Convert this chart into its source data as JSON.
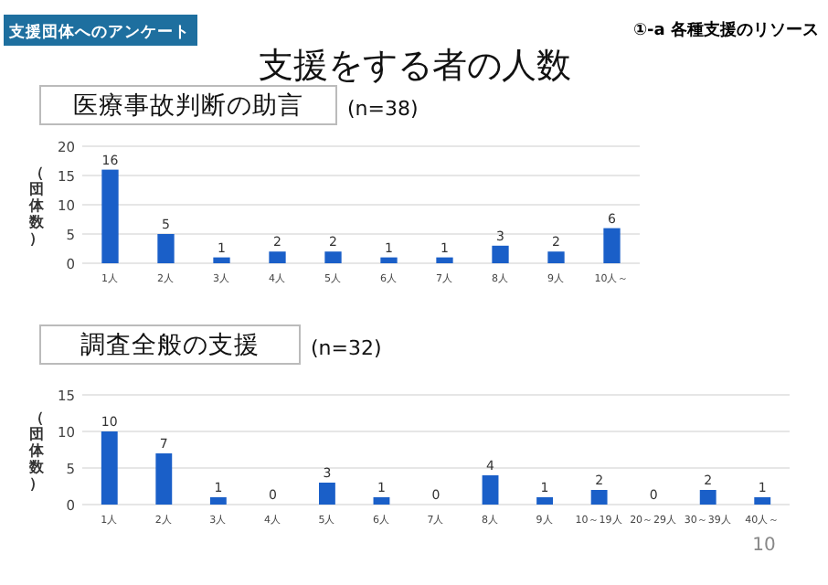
{
  "chart_data": [
    {
      "type": "other",
      "title": "支援をする者の人数",
      "annotations": [
        "支援団体へのアンケート",
        "①-a 各種支援のリソース",
        "10"
      ]
    },
    {
      "type": "bar",
      "title": "医療事故判断の助言",
      "subtitle": "(n=38)",
      "ylabel": "（団体数）",
      "categories": [
        "1人",
        "2人",
        "3人",
        "4人",
        "5人",
        "6人",
        "7人",
        "8人",
        "9人",
        "10人～"
      ],
      "values": [
        16,
        5,
        1,
        2,
        2,
        1,
        1,
        3,
        2,
        6
      ],
      "color": "#1a5fc8",
      "ylim": [
        0,
        20
      ],
      "yticks": [
        0,
        5,
        10,
        15,
        20
      ],
      "grid": "y",
      "data_labels": true
    },
    {
      "type": "bar",
      "title": "調査全般の支援",
      "subtitle": "(n=32)",
      "ylabel": "（団体数）",
      "categories": [
        "1人",
        "2人",
        "3人",
        "4人",
        "5人",
        "6人",
        "7人",
        "8人",
        "9人",
        "10～19人",
        "20～29人",
        "30～39人",
        "40人～"
      ],
      "values": [
        10,
        7,
        1,
        0,
        3,
        1,
        0,
        4,
        1,
        2,
        0,
        2,
        1
      ],
      "color": "#1a5fc8",
      "ylim": [
        0,
        15
      ],
      "yticks": [
        0,
        5,
        10,
        15
      ],
      "grid": "y",
      "data_labels": true
    }
  ]
}
